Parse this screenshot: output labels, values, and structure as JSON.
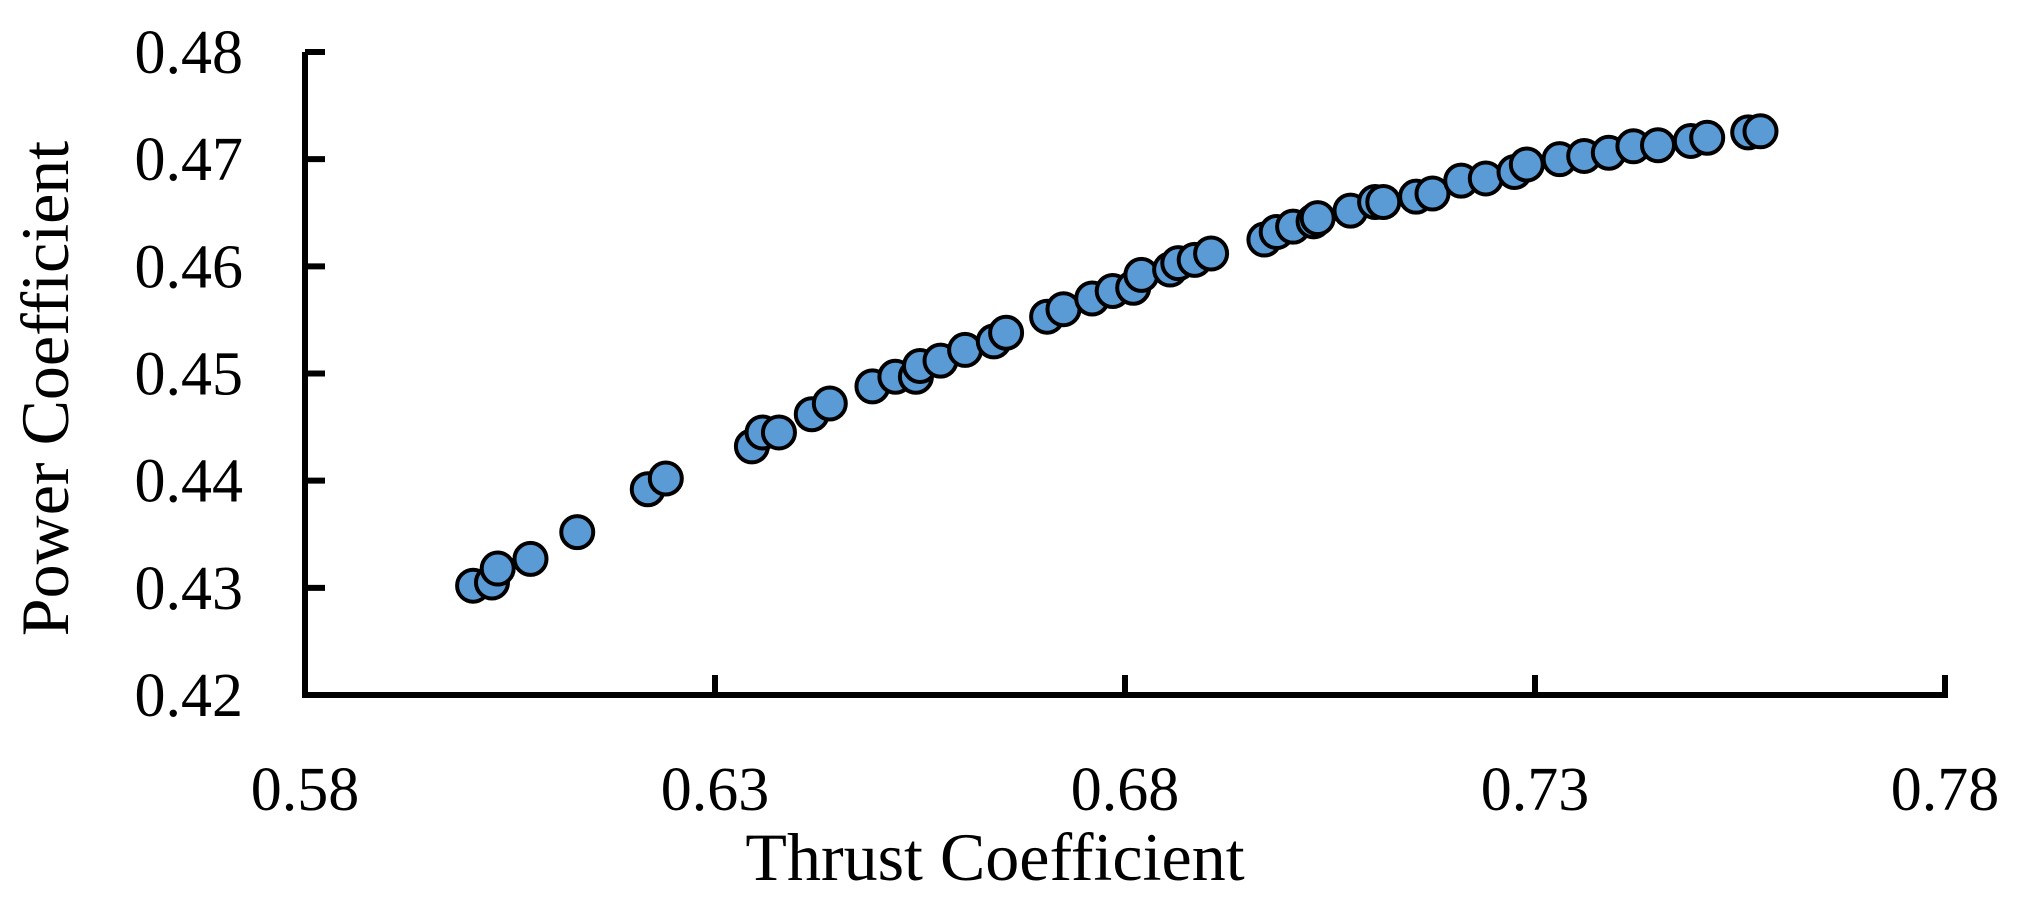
{
  "chart_data": {
    "type": "scatter",
    "xlabel": "Thrust Coefficient",
    "ylabel": "Power Coefficient",
    "xlim": [
      0.58,
      0.78
    ],
    "ylim": [
      0.42,
      0.48
    ],
    "x_ticks": [
      "0.58",
      "0.63",
      "0.68",
      "0.73",
      "0.78"
    ],
    "y_ticks": [
      "0.42",
      "0.43",
      "0.44",
      "0.45",
      "0.46",
      "0.47",
      "0.48"
    ],
    "grid": false,
    "marker_color": "#5B9BD5",
    "marker_edge_color": "#000000",
    "series": [
      {
        "points": [
          [
            0.6005,
            0.4302
          ],
          [
            0.6028,
            0.4305
          ],
          [
            0.6035,
            0.4318
          ],
          [
            0.6075,
            0.4327
          ],
          [
            0.6132,
            0.4352
          ],
          [
            0.6218,
            0.4392
          ],
          [
            0.624,
            0.4402
          ],
          [
            0.6345,
            0.4432
          ],
          [
            0.6358,
            0.4445
          ],
          [
            0.6378,
            0.4445
          ],
          [
            0.6418,
            0.4462
          ],
          [
            0.644,
            0.4472
          ],
          [
            0.6492,
            0.4488
          ],
          [
            0.652,
            0.4497
          ],
          [
            0.6545,
            0.4497
          ],
          [
            0.655,
            0.4507
          ],
          [
            0.6575,
            0.4512
          ],
          [
            0.6605,
            0.4522
          ],
          [
            0.664,
            0.453
          ],
          [
            0.6655,
            0.4538
          ],
          [
            0.6705,
            0.4553
          ],
          [
            0.6725,
            0.456
          ],
          [
            0.676,
            0.457
          ],
          [
            0.6785,
            0.4577
          ],
          [
            0.681,
            0.458
          ],
          [
            0.682,
            0.4592
          ],
          [
            0.6855,
            0.4597
          ],
          [
            0.6865,
            0.4603
          ],
          [
            0.6885,
            0.4606
          ],
          [
            0.6905,
            0.4612
          ],
          [
            0.697,
            0.4625
          ],
          [
            0.6985,
            0.4632
          ],
          [
            0.7005,
            0.4637
          ],
          [
            0.703,
            0.4642
          ],
          [
            0.7035,
            0.4645
          ],
          [
            0.7075,
            0.4652
          ],
          [
            0.7105,
            0.466
          ],
          [
            0.7115,
            0.466
          ],
          [
            0.7155,
            0.4665
          ],
          [
            0.7175,
            0.4668
          ],
          [
            0.721,
            0.468
          ],
          [
            0.724,
            0.4682
          ],
          [
            0.7275,
            0.4688
          ],
          [
            0.729,
            0.4695
          ],
          [
            0.733,
            0.47
          ],
          [
            0.736,
            0.4703
          ],
          [
            0.739,
            0.4706
          ],
          [
            0.742,
            0.4712
          ],
          [
            0.745,
            0.4713
          ],
          [
            0.749,
            0.4717
          ],
          [
            0.751,
            0.472
          ],
          [
            0.756,
            0.4725
          ],
          [
            0.7575,
            0.4726
          ]
        ]
      }
    ]
  }
}
